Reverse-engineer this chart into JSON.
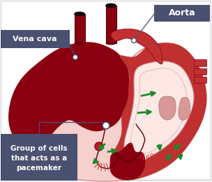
{
  "bg_color": "#ffffff",
  "label_bg_color": "#4a5070",
  "label_text_color": "#ffffff",
  "arrow_color": "#1a8a2a",
  "line_color": "#4a5070",
  "heart_dark_red": "#8b0010",
  "heart_mid_red": "#c03030",
  "heart_light": "#f0b0b0",
  "heart_pale": "#f5d0cc",
  "heart_inner_pale": "#fce8e5",
  "dark_vessel": "#1a0005",
  "aorta_label": "Aorta",
  "vena_cava_label": "Vena cava",
  "pacemaker_label": "Group of cells\nthat acts as a\npacemaker",
  "figsize": [
    3.04,
    2.61
  ],
  "dpi": 100
}
